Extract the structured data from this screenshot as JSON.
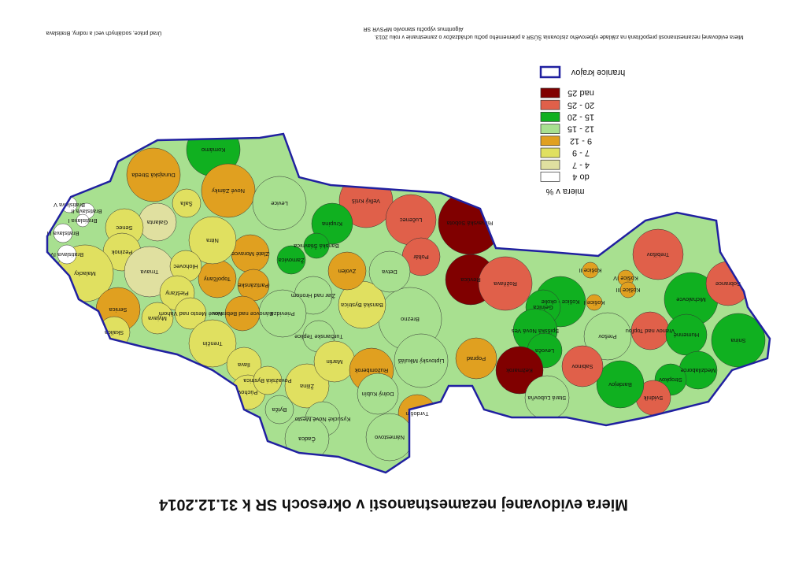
{
  "title": "Miera evidovanej nezamestnanosti v okresoch SR k 31.12.2014",
  "source_left": "Úrad práce, sociálnych vecí a rodiny, Bratislava",
  "source_right": [
    "Algoritmus výpočtu stanovilo MPSVR SR",
    "Miera evidovanej nezamestnanosti prepočítaná na základe výberového zisťovania ŠÚSR a priemerného počtu uchádzačov o zamestnanie v roku 2013."
  ],
  "legend": {
    "border_label": "hranice krajov",
    "border_color": "#2020a0",
    "title": "miera v %",
    "classes": [
      {
        "label": "nad 25",
        "color": "#800000"
      },
      {
        "label": "20 - 25",
        "color": "#e0604a"
      },
      {
        "label": "15 - 20",
        "color": "#10b020"
      },
      {
        "label": "12 - 15",
        "color": "#a8e090"
      },
      {
        "label": "9 - 12",
        "color": "#e0a020"
      },
      {
        "label": "7 - 9",
        "color": "#e0e060"
      },
      {
        "label": "4 - 7",
        "color": "#e0e0a0"
      },
      {
        "label": "do 4",
        "color": "#ffffff"
      }
    ]
  },
  "districts": [
    {
      "name": "Komárno",
      "color": "#10b020"
    },
    {
      "name": "Dunajská Streda",
      "color": "#e0a020"
    },
    {
      "name": "Nové Zámky",
      "color": "#e0a020"
    },
    {
      "name": "Levice",
      "color": "#a8e090"
    },
    {
      "name": "Veľký Krtíš",
      "color": "#e0604a"
    },
    {
      "name": "Lučenec",
      "color": "#e0604a"
    },
    {
      "name": "Rimavská Sobota",
      "color": "#800000"
    },
    {
      "name": "Revúca",
      "color": "#800000"
    },
    {
      "name": "Poltár",
      "color": "#e0604a"
    },
    {
      "name": "Rožňava",
      "color": "#e0604a"
    },
    {
      "name": "Košice - okolie",
      "color": "#10b020"
    },
    {
      "name": "Košice II",
      "color": "#e0a020"
    },
    {
      "name": "Košice IV",
      "color": "#e0a020"
    },
    {
      "name": "Košice I",
      "color": "#e0a020"
    },
    {
      "name": "Košice III",
      "color": "#e0a020"
    },
    {
      "name": "Trebišov",
      "color": "#e0604a"
    },
    {
      "name": "Michalovce",
      "color": "#10b020"
    },
    {
      "name": "Sobrance",
      "color": "#e0604a"
    },
    {
      "name": "Gelnica",
      "color": "#10b020"
    },
    {
      "name": "Spišská Nová Ves",
      "color": "#10b020"
    },
    {
      "name": "Levoča",
      "color": "#10b020"
    },
    {
      "name": "Prešov",
      "color": "#a8e090"
    },
    {
      "name": "Vranov nad Topľou",
      "color": "#e0604a"
    },
    {
      "name": "Humenné",
      "color": "#10b020"
    },
    {
      "name": "Snina",
      "color": "#10b020"
    },
    {
      "name": "Medzilaborce",
      "color": "#10b020"
    },
    {
      "name": "Stropkov",
      "color": "#10b020"
    },
    {
      "name": "Svidník",
      "color": "#e0604a"
    },
    {
      "name": "Bardejov",
      "color": "#10b020"
    },
    {
      "name": "Sabinov",
      "color": "#e0604a"
    },
    {
      "name": "Kežmarok",
      "color": "#800000"
    },
    {
      "name": "Stará Ľubovňa",
      "color": "#a8e090"
    },
    {
      "name": "Poprad",
      "color": "#e0a020"
    },
    {
      "name": "Brezno",
      "color": "#a8e090"
    },
    {
      "name": "Banská Bystrica",
      "color": "#e0e060"
    },
    {
      "name": "Žiar nad Hronom",
      "color": "#a8e090"
    },
    {
      "name": "Prievidza",
      "color": "#a8e090"
    },
    {
      "name": "Zvolen",
      "color": "#e0a020"
    },
    {
      "name": "Detva",
      "color": "#a8e090"
    },
    {
      "name": "Krupina",
      "color": "#10b020"
    },
    {
      "name": "Banská Štiavnica",
      "color": "#10b020"
    },
    {
      "name": "Žarnovica",
      "color": "#10b020"
    },
    {
      "name": "Zlaté Moravce",
      "color": "#e0a020"
    },
    {
      "name": "Partizánske",
      "color": "#e0a020"
    },
    {
      "name": "Topoľčany",
      "color": "#e0a020"
    },
    {
      "name": "Nitra",
      "color": "#e0e060"
    },
    {
      "name": "Šaľa",
      "color": "#e0e060"
    },
    {
      "name": "Galanta",
      "color": "#e0e0a0"
    },
    {
      "name": "Senec",
      "color": "#e0e060"
    },
    {
      "name": "Pezinok",
      "color": "#e0e060"
    },
    {
      "name": "Malacky",
      "color": "#e0e060"
    },
    {
      "name": "Trnava",
      "color": "#e0e0a0"
    },
    {
      "name": "Hlohovec",
      "color": "#e0e060"
    },
    {
      "name": "Piešťany",
      "color": "#e0e060"
    },
    {
      "name": "Bratislava V",
      "color": "#ffffff"
    },
    {
      "name": "Bratislava II",
      "color": "#ffffff"
    },
    {
      "name": "Bratislava I",
      "color": "#ffffff"
    },
    {
      "name": "Bratislava III",
      "color": "#ffffff"
    },
    {
      "name": "Bratislava IV",
      "color": "#ffffff"
    },
    {
      "name": "Senica",
      "color": "#e0a020"
    },
    {
      "name": "Skalica",
      "color": "#e0e060"
    },
    {
      "name": "Myjava",
      "color": "#e0e060"
    },
    {
      "name": "Nové Mesto nad Váhom",
      "color": "#e0e060"
    },
    {
      "name": "Trenčín",
      "color": "#e0e060"
    },
    {
      "name": "Bánovce nad Bebravou",
      "color": "#e0a020"
    },
    {
      "name": "Ilava",
      "color": "#e0e060"
    },
    {
      "name": "Púchov",
      "color": "#e0e060"
    },
    {
      "name": "Považská Bystrica",
      "color": "#e0e060"
    },
    {
      "name": "Bytča",
      "color": "#a8e090"
    },
    {
      "name": "Žilina",
      "color": "#e0e060"
    },
    {
      "name": "Kysucké Nové Mesto",
      "color": "#a8e090"
    },
    {
      "name": "Čadca",
      "color": "#a8e090"
    },
    {
      "name": "Turčianske Teplice",
      "color": "#a8e090"
    },
    {
      "name": "Martin",
      "color": "#e0e060"
    },
    {
      "name": "Ružomberok",
      "color": "#e0a020"
    },
    {
      "name": "Liptovský Mikuláš",
      "color": "#a8e090"
    },
    {
      "name": "Dolný Kubín",
      "color": "#a8e090"
    },
    {
      "name": "Tvrdošín",
      "color": "#e0a020"
    },
    {
      "name": "Námestovo",
      "color": "#a8e090"
    }
  ]
}
